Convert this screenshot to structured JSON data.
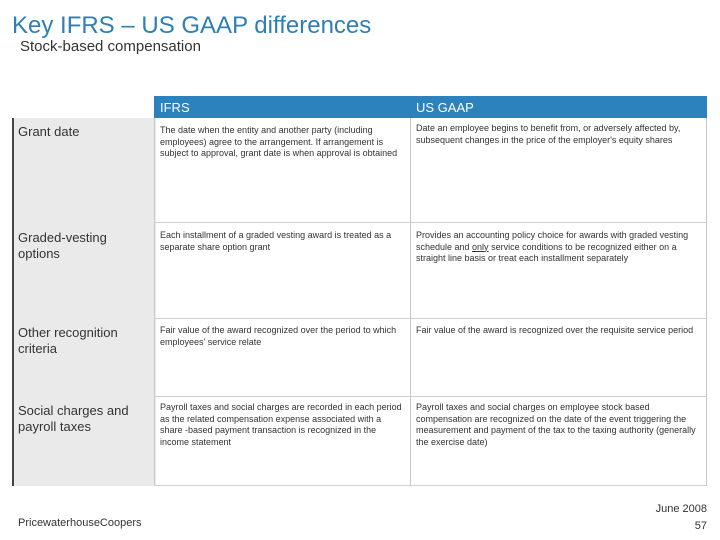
{
  "title": "Key IFRS – US GAAP differences",
  "subtitle": "Stock-based compensation",
  "table": {
    "headers": {
      "ifrs": "IFRS",
      "usgaap": "US GAAP"
    },
    "rows": [
      {
        "label": "Grant date",
        "ifrs": "The date when the entity and another party (including employees) agree to the arrangement. If arrangement is subject to approval, grant date is when approval is obtained",
        "usgaap": "Date an employee begins to benefit from, or adversely affected by, subsequent changes in the price of the employer's equity shares"
      },
      {
        "label": "Graded-vesting options",
        "ifrs": "Each installment of a graded vesting award is treated as a separate share option grant",
        "usgaap_pre": "Provides an accounting policy choice for awards with graded vesting schedule and ",
        "usgaap_underline": "only",
        "usgaap_post": " service conditions to be recognized either on a straight line basis or treat each installment separately"
      },
      {
        "label": "Other recognition criteria",
        "ifrs": "Fair value of the award recognized over the period to which employees' service relate",
        "usgaap": "Fair value of the award is recognized over the requisite service period"
      },
      {
        "label": "Social charges and payroll taxes",
        "ifrs": "Payroll taxes and social charges are recorded in each period as the related compensation expense associated with a share -based payment transaction is recognized in the income statement",
        "usgaap": "Payroll taxes and social charges on employee stock based compensation are recognized on the date of the event triggering the measurement and payment of the tax to the taxing authority (generally the exercise date)"
      }
    ]
  },
  "footer": {
    "company": "PricewaterhouseCoopers",
    "date": "June 2008",
    "page": "57"
  }
}
